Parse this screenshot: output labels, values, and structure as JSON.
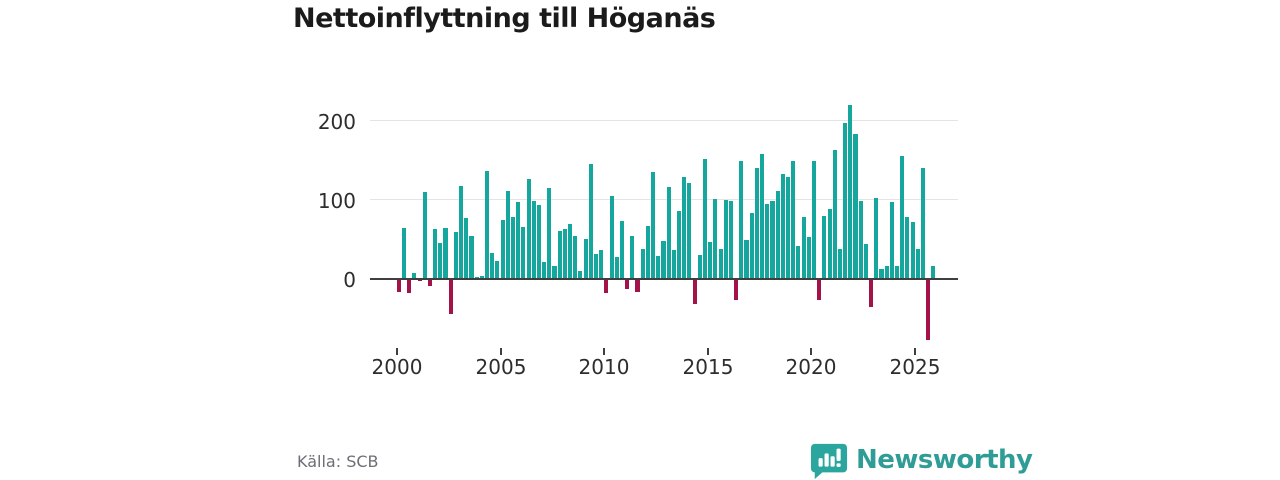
{
  "title": "Nettoinflyttning till Höganäs",
  "source": "Källa: SCB",
  "brand": {
    "name": "Newsworthy",
    "icon": "bar-chart-speech-bubble-icon"
  },
  "chart_data": {
    "type": "bar",
    "title": "Nettoinflyttning till Höganäs",
    "periodicity": "quarterly",
    "start_period": "2000-Q1",
    "end_period": "2025-Q4",
    "x_tick_labels": [
      "2000",
      "2005",
      "2010",
      "2015",
      "2020",
      "2025"
    ],
    "y_tick_labels": [
      "0",
      "100",
      "200"
    ],
    "ylim": [
      -90,
      230
    ],
    "grid": "horizontal",
    "legend": "none",
    "colors": {
      "positive": "#15a79e",
      "negative": "#a31349"
    },
    "values": [
      -17,
      65,
      -18,
      8,
      -3,
      110,
      -9,
      63,
      46,
      65,
      -44,
      59,
      118,
      77,
      54,
      2,
      4,
      137,
      33,
      23,
      75,
      112,
      79,
      98,
      66,
      126,
      99,
      94,
      21,
      115,
      16,
      61,
      63,
      70,
      55,
      10,
      51,
      146,
      32,
      37,
      -18,
      105,
      28,
      74,
      -13,
      55,
      -17,
      38,
      67,
      136,
      29,
      48,
      117,
      37,
      86,
      129,
      122,
      -32,
      30,
      152,
      47,
      101,
      38,
      100,
      99,
      -27,
      150,
      50,
      83,
      141,
      158,
      95,
      99,
      112,
      133,
      129,
      150,
      42,
      78,
      53,
      150,
      -26,
      80,
      88,
      163,
      38,
      197,
      220,
      183,
      99,
      44,
      -35,
      103,
      13,
      17,
      97,
      17,
      156,
      78,
      72,
      38,
      140,
      -77,
      17
    ]
  }
}
